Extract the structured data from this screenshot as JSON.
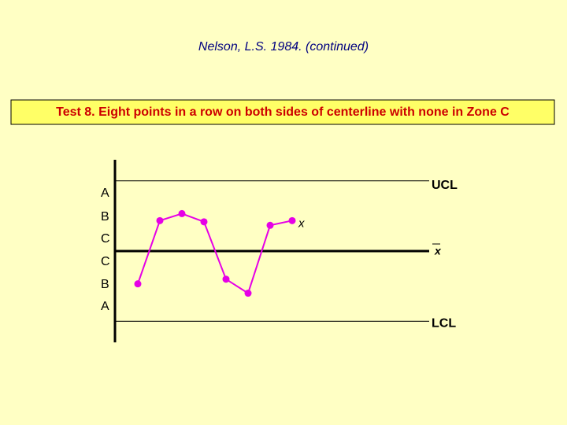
{
  "header": "Nelson, L.S. 1984. (continued)",
  "banner": "Test 8. Eight points in a row on both sides of centerline with none in Zone C",
  "chart_data": {
    "type": "line",
    "categories": [
      null,
      null,
      null,
      null,
      null,
      null,
      null,
      null
    ],
    "series": [
      {
        "color": "#e600e6",
        "values": [
          -1.4,
          1.3,
          1.6,
          1.25,
          -1.2,
          -1.8,
          1.1,
          1.3
        ]
      }
    ],
    "ylim": [
      -3.9,
      3.9
    ],
    "control_lines": [
      {
        "label": "UCL",
        "value": 3
      },
      {
        "label": "x",
        "value": 0
      },
      {
        "label": "LCL",
        "value": -3
      }
    ],
    "zones": [
      "A",
      "B",
      "C",
      "C",
      "B",
      "A"
    ],
    "annotation": "x"
  }
}
